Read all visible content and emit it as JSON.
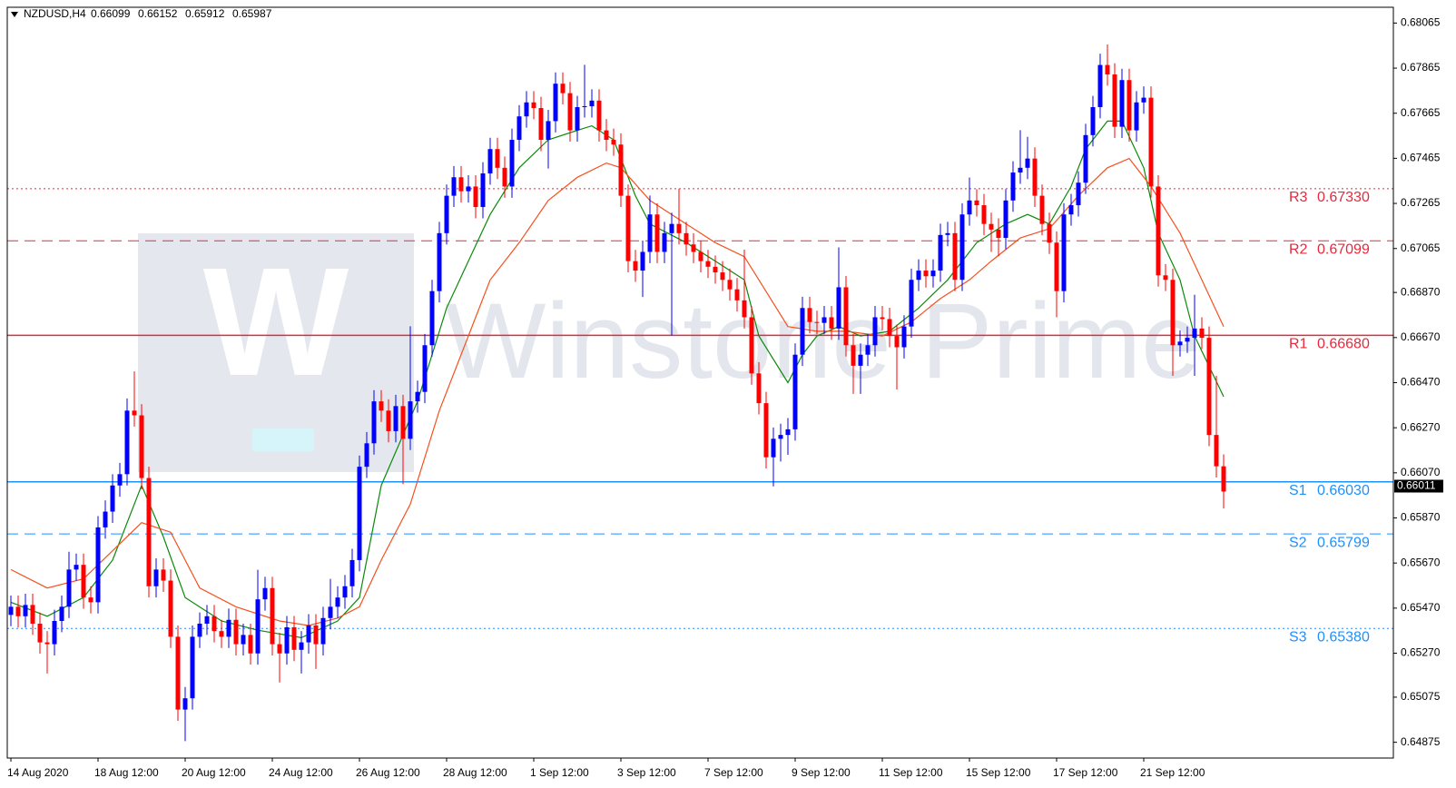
{
  "chart_data": {
    "type": "candlestick",
    "symbol": "NZDUSD,H4",
    "categories": [
      "14 Aug 2020",
      null,
      null,
      null,
      null,
      null,
      null,
      null,
      null,
      null,
      null,
      null,
      "18 Aug 12:00",
      null,
      null,
      null,
      null,
      null,
      null,
      null,
      null,
      null,
      null,
      null,
      "20 Aug 12:00",
      null,
      null,
      null,
      null,
      null,
      null,
      null,
      null,
      null,
      null,
      null,
      "24 Aug 12:00",
      null,
      null,
      null,
      null,
      null,
      null,
      null,
      null,
      null,
      null,
      null,
      "26 Aug 12:00",
      null,
      null,
      null,
      null,
      null,
      null,
      null,
      null,
      null,
      null,
      null,
      "28 Aug 12:00",
      null,
      null,
      null,
      null,
      null,
      null,
      null,
      null,
      null,
      null,
      null,
      "1 Sep 12:00",
      null,
      null,
      null,
      null,
      null,
      null,
      null,
      null,
      null,
      null,
      null,
      "3 Sep 12:00",
      null,
      null,
      null,
      null,
      null,
      null,
      null,
      null,
      null,
      null,
      null,
      "7 Sep 12:00",
      null,
      null,
      null,
      null,
      null,
      null,
      null,
      null,
      null,
      null,
      null,
      "9 Sep 12:00",
      null,
      null,
      null,
      null,
      null,
      null,
      null,
      null,
      null,
      null,
      null,
      "11 Sep 12:00",
      null,
      null,
      null,
      null,
      null,
      null,
      null,
      null,
      null,
      null,
      null,
      "15 Sep 12:00",
      null,
      null,
      null,
      null,
      null,
      null,
      null,
      null,
      null,
      null,
      null,
      "17 Sep 12:00",
      null,
      null,
      null,
      null,
      null,
      null,
      null,
      null,
      null,
      null,
      null,
      "21 Sep 12:00",
      null,
      null,
      null,
      null,
      null,
      null,
      null,
      null,
      null,
      null,
      null
    ],
    "series": {
      "up_color": "#0000ff",
      "down_color": "#ff0000",
      "open": [
        0.6544,
        0.65476,
        0.65434,
        0.65484,
        0.65401,
        0.65318,
        0.6531,
        0.65413,
        0.65476,
        0.65641,
        0.65662,
        0.65517,
        0.65496,
        0.65828,
        0.65898,
        0.66014,
        0.66064,
        0.66346,
        0.66325,
        0.66047,
        0.65567,
        0.65641,
        0.65592,
        0.65343,
        0.6502,
        0.6507,
        0.65343,
        0.65401,
        0.65434,
        0.65368,
        0.65343,
        0.65418,
        0.6531,
        0.65351,
        0.65269,
        0.65509,
        0.65559,
        0.6531,
        0.65269,
        0.65385,
        0.65285,
        0.65318,
        0.65393,
        0.6531,
        0.65426,
        0.65476,
        0.65517,
        0.65567,
        0.65683,
        0.66097,
        0.66201,
        0.66387,
        0.66346,
        0.66255,
        0.66366,
        0.66221,
        0.66387,
        0.66429,
        0.66636,
        0.66876,
        0.67133,
        0.67299,
        0.67381,
        0.67319,
        0.6734,
        0.67249,
        0.67398,
        0.67506,
        0.67423,
        0.6734,
        0.67547,
        0.67651,
        0.67713,
        0.67688,
        0.67547,
        0.6763,
        0.67796,
        0.67754,
        0.67589,
        0.67692,
        0.67696,
        0.67721,
        0.67589,
        0.67547,
        0.67526,
        0.67299,
        0.67009,
        0.66967,
        0.6705,
        0.67216,
        0.6705,
        0.67133,
        0.67174,
        0.67133,
        0.67083,
        0.6705,
        0.67009,
        0.66984,
        0.66959,
        0.66926,
        0.66884,
        0.66835,
        0.6676,
        0.66511,
        0.66379,
        0.66139,
        0.66221,
        0.66238,
        0.66263,
        0.66594,
        0.66801,
        0.66739,
        0.66735,
        0.6676,
        0.6671,
        0.66893,
        0.66636,
        0.66545,
        0.66594,
        0.66636,
        0.6676,
        0.66752,
        0.66677,
        0.66627,
        0.66719,
        0.66926,
        0.66967,
        0.66942,
        0.66967,
        0.67125,
        0.67133,
        0.66926,
        0.67216,
        0.67278,
        0.67257,
        0.67174,
        0.67149,
        0.67112,
        0.67278,
        0.67402,
        0.67423,
        0.67464,
        0.67299,
        0.67174,
        0.67091,
        0.66876,
        0.67216,
        0.67257,
        0.67357,
        0.67568,
        0.67692,
        0.67879,
        0.67837,
        0.67605,
        0.67812,
        0.67589,
        0.67713,
        0.67734,
        0.6734,
        0.66946,
        0.66926,
        0.66636,
        0.66652,
        0.66669,
        0.6671,
        0.66669,
        0.66238,
        0.66099
      ],
      "high": [
        0.65526,
        0.65526,
        0.65534,
        0.65534,
        0.65451,
        0.65368,
        0.65463,
        0.65526,
        0.6572,
        0.65712,
        0.65712,
        0.65567,
        0.65878,
        0.65948,
        0.66064,
        0.66114,
        0.664,
        0.6652,
        0.66375,
        0.66097,
        0.65691,
        0.65691,
        0.65642,
        0.65393,
        0.6512,
        0.65393,
        0.65451,
        0.65484,
        0.65484,
        0.65418,
        0.65468,
        0.65468,
        0.65401,
        0.65401,
        0.6564,
        0.65609,
        0.65609,
        0.6536,
        0.65435,
        0.65435,
        0.65368,
        0.65443,
        0.65443,
        0.65476,
        0.656,
        0.65567,
        0.65617,
        0.65733,
        0.66147,
        0.66251,
        0.66437,
        0.66437,
        0.66396,
        0.66416,
        0.66416,
        0.6672,
        0.66479,
        0.66686,
        0.66926,
        0.67183,
        0.67349,
        0.67431,
        0.67431,
        0.6739,
        0.6739,
        0.67448,
        0.67556,
        0.67556,
        0.67473,
        0.67597,
        0.67701,
        0.67763,
        0.67763,
        0.67738,
        0.6768,
        0.67846,
        0.67846,
        0.67804,
        0.67742,
        0.6788,
        0.67771,
        0.67771,
        0.67639,
        0.67597,
        0.67576,
        0.67349,
        0.67059,
        0.671,
        0.673,
        0.67266,
        0.67183,
        0.67224,
        0.6733,
        0.67183,
        0.67133,
        0.671,
        0.67059,
        0.67034,
        0.67009,
        0.66976,
        0.66934,
        0.6706,
        0.6681,
        0.66561,
        0.66429,
        0.66271,
        0.66288,
        0.66313,
        0.66644,
        0.66851,
        0.66851,
        0.66789,
        0.6681,
        0.6681,
        0.6707,
        0.66943,
        0.66686,
        0.66644,
        0.66686,
        0.6681,
        0.6681,
        0.66802,
        0.66727,
        0.66769,
        0.66976,
        0.67017,
        0.67017,
        0.67017,
        0.67175,
        0.67183,
        0.67183,
        0.67266,
        0.6738,
        0.67328,
        0.67307,
        0.67224,
        0.67199,
        0.67328,
        0.67452,
        0.6759,
        0.6756,
        0.67514,
        0.67349,
        0.67224,
        0.67141,
        0.67266,
        0.67307,
        0.67407,
        0.67618,
        0.67742,
        0.67929,
        0.6797,
        0.67887,
        0.67862,
        0.67862,
        0.67763,
        0.67784,
        0.67784,
        0.6739,
        0.66996,
        0.66976,
        0.66702,
        0.66719,
        0.6686,
        0.6676,
        0.66719,
        0.665,
        0.66152
      ],
      "low": [
        0.6539,
        0.65384,
        0.65384,
        0.65351,
        0.65268,
        0.6518,
        0.6526,
        0.65363,
        0.65426,
        0.65591,
        0.65467,
        0.65446,
        0.65446,
        0.65778,
        0.65848,
        0.65964,
        0.66014,
        0.66275,
        0.65997,
        0.65517,
        0.65517,
        0.65542,
        0.65293,
        0.6497,
        0.6488,
        0.6502,
        0.65293,
        0.65351,
        0.65318,
        0.65293,
        0.65293,
        0.6526,
        0.6526,
        0.65219,
        0.65219,
        0.65459,
        0.6526,
        0.6514,
        0.65219,
        0.65235,
        0.6518,
        0.65268,
        0.652,
        0.6526,
        0.65376,
        0.65426,
        0.65467,
        0.65517,
        0.65633,
        0.66047,
        0.66151,
        0.66296,
        0.66205,
        0.66205,
        0.6602,
        0.66171,
        0.66337,
        0.66379,
        0.66586,
        0.66826,
        0.67083,
        0.67249,
        0.67269,
        0.67269,
        0.67199,
        0.67199,
        0.67348,
        0.67373,
        0.6729,
        0.6729,
        0.67497,
        0.67601,
        0.67638,
        0.67497,
        0.6742,
        0.6758,
        0.67704,
        0.67539,
        0.67539,
        0.67646,
        0.67646,
        0.67539,
        0.67497,
        0.67476,
        0.67249,
        0.66959,
        0.66917,
        0.6685,
        0.67,
        0.67,
        0.67,
        0.6668,
        0.67083,
        0.67033,
        0.67,
        0.66959,
        0.66934,
        0.66909,
        0.66876,
        0.66834,
        0.66785,
        0.6671,
        0.66461,
        0.66329,
        0.66089,
        0.6601,
        0.6612,
        0.6615,
        0.66213,
        0.66544,
        0.66689,
        0.66685,
        0.66685,
        0.6666,
        0.6666,
        0.66586,
        0.6642,
        0.6642,
        0.66544,
        0.66586,
        0.66702,
        0.66627,
        0.6644,
        0.66577,
        0.66669,
        0.66876,
        0.66892,
        0.66892,
        0.66917,
        0.67075,
        0.66876,
        0.66876,
        0.67166,
        0.67207,
        0.67124,
        0.6705,
        0.6703,
        0.67062,
        0.67228,
        0.67352,
        0.67373,
        0.67249,
        0.67124,
        0.67041,
        0.6676,
        0.66826,
        0.67166,
        0.67207,
        0.67307,
        0.67518,
        0.67642,
        0.67787,
        0.67555,
        0.67555,
        0.67539,
        0.67539,
        0.67663,
        0.6729,
        0.66896,
        0.66876,
        0.665,
        0.66586,
        0.66602,
        0.665,
        0.66619,
        0.66188,
        0.66049,
        0.65912
      ],
      "close": [
        0.65476,
        0.65434,
        0.65484,
        0.65401,
        0.65318,
        0.6531,
        0.65413,
        0.65476,
        0.65641,
        0.65662,
        0.65517,
        0.65496,
        0.65828,
        0.65898,
        0.66014,
        0.66064,
        0.66346,
        0.66325,
        0.66047,
        0.65567,
        0.65641,
        0.65592,
        0.65343,
        0.6502,
        0.6507,
        0.65343,
        0.65401,
        0.65434,
        0.65368,
        0.65343,
        0.65418,
        0.6531,
        0.65351,
        0.65269,
        0.65509,
        0.65559,
        0.6531,
        0.65269,
        0.65385,
        0.65285,
        0.65318,
        0.65393,
        0.6531,
        0.65426,
        0.65476,
        0.65517,
        0.65567,
        0.65683,
        0.66097,
        0.66201,
        0.66387,
        0.66346,
        0.66255,
        0.66366,
        0.66221,
        0.66387,
        0.66429,
        0.66636,
        0.66876,
        0.67133,
        0.67299,
        0.67381,
        0.67319,
        0.6734,
        0.67249,
        0.67398,
        0.67506,
        0.67423,
        0.6734,
        0.67547,
        0.67651,
        0.67713,
        0.67688,
        0.67547,
        0.6763,
        0.67796,
        0.67754,
        0.67589,
        0.67692,
        0.67696,
        0.67721,
        0.67589,
        0.67547,
        0.67526,
        0.67299,
        0.67009,
        0.66967,
        0.6705,
        0.67216,
        0.6705,
        0.67133,
        0.67174,
        0.67133,
        0.67083,
        0.6705,
        0.67009,
        0.66984,
        0.66959,
        0.66926,
        0.66884,
        0.66835,
        0.6676,
        0.66511,
        0.66379,
        0.66139,
        0.66221,
        0.66238,
        0.66263,
        0.66594,
        0.66801,
        0.66739,
        0.66735,
        0.6676,
        0.6671,
        0.66893,
        0.66636,
        0.66545,
        0.66594,
        0.66636,
        0.6676,
        0.66752,
        0.66677,
        0.66627,
        0.66719,
        0.66926,
        0.66967,
        0.66942,
        0.66967,
        0.67125,
        0.67133,
        0.66926,
        0.67216,
        0.67278,
        0.67257,
        0.67174,
        0.67149,
        0.67112,
        0.67278,
        0.67402,
        0.67423,
        0.67464,
        0.67299,
        0.67174,
        0.67091,
        0.66876,
        0.67216,
        0.67257,
        0.67357,
        0.67568,
        0.67692,
        0.67879,
        0.67837,
        0.67605,
        0.67812,
        0.67589,
        0.67713,
        0.67734,
        0.6734,
        0.66946,
        0.66926,
        0.66636,
        0.66652,
        0.66669,
        0.6671,
        0.66669,
        0.66238,
        0.66099,
        0.65987
      ]
    },
    "moving_averages": [
      {
        "color": "#0a8a0a",
        "x": [
          0,
          5,
          10,
          14,
          18,
          21,
          24,
          29,
          34,
          40,
          45,
          48,
          51,
          56,
          60,
          63,
          66,
          70,
          74,
          78,
          80,
          83,
          86,
          88,
          93,
          97,
          101,
          103,
          107,
          109,
          111,
          114,
          117,
          121,
          125,
          129,
          133,
          137,
          140,
          143,
          146,
          148,
          151,
          153,
          156,
          158,
          161,
          163,
          167
        ],
        "values": [
          0.65496,
          0.65434,
          0.65517,
          0.65683,
          0.66014,
          0.65786,
          0.65517,
          0.65413,
          0.65372,
          0.65339,
          0.65413,
          0.65517,
          0.66014,
          0.66387,
          0.66801,
          0.67009,
          0.67216,
          0.67423,
          0.67547,
          0.67589,
          0.67609,
          0.67547,
          0.67299,
          0.67174,
          0.67091,
          0.67009,
          0.66926,
          0.66677,
          0.6647,
          0.66594,
          0.66677,
          0.66719,
          0.66677,
          0.66698,
          0.66801,
          0.66926,
          0.67091,
          0.67174,
          0.67216,
          0.67174,
          0.6734,
          0.67506,
          0.6763,
          0.6763,
          0.67423,
          0.67133,
          0.66926,
          0.66677,
          0.66408
        ]
      },
      {
        "color": "#f4511e",
        "x": [
          0,
          5,
          10,
          18,
          22,
          26,
          31,
          37,
          41,
          45,
          48,
          51,
          55,
          59,
          63,
          66,
          70,
          74,
          78,
          82,
          84,
          88,
          93,
          97,
          101,
          103,
          107,
          111,
          115,
          120,
          124,
          128,
          132,
          135,
          139,
          143,
          147,
          151,
          154,
          157,
          161,
          164,
          167
        ],
        "values": [
          0.65641,
          0.65559,
          0.656,
          0.65849,
          0.65807,
          0.65559,
          0.65476,
          0.65413,
          0.65393,
          0.65426,
          0.65476,
          0.65683,
          0.65931,
          0.66346,
          0.66677,
          0.66926,
          0.67091,
          0.67278,
          0.67381,
          0.67444,
          0.67423,
          0.67278,
          0.67174,
          0.67091,
          0.67029,
          0.66926,
          0.66719,
          0.66698,
          0.66698,
          0.66677,
          0.66739,
          0.66843,
          0.66926,
          0.67009,
          0.67112,
          0.67153,
          0.67299,
          0.67423,
          0.67464,
          0.6734,
          0.67133,
          0.66926,
          0.66719
        ]
      }
    ],
    "levels": [
      {
        "name": "R3",
        "value": 0.6733,
        "value_label": "0.67330",
        "color": "#e8283c",
        "style": "dotted"
      },
      {
        "name": "R2",
        "value": 0.67099,
        "color": "#e8283c",
        "style": "dashed"
      },
      {
        "name": "R1",
        "value": 0.6668,
        "value_label": "0.66680",
        "color": "#e8283c",
        "style": "solid"
      },
      {
        "name": "S1",
        "value": 0.6603,
        "value_label": "0.66030",
        "color": "#1e90ff",
        "style": "solid"
      },
      {
        "name": "S2",
        "value": 0.65799,
        "color": "#1e90ff",
        "style": "dashed"
      },
      {
        "name": "S3",
        "value": 0.6538,
        "value_label": "0.65380",
        "color": "#1e90ff",
        "style": "dotted"
      }
    ],
    "current_price": 0.66011,
    "ylim": [
      0.64805,
      0.68135
    ],
    "yticks": [
      0.68065,
      0.67865,
      0.67665,
      0.67465,
      0.67265,
      0.67065,
      {
        "value": 0.6687,
        "label": "0.66870"
      },
      {
        "value": 0.6667,
        "label": "0.66670"
      },
      {
        "value": 0.6647,
        "label": "0.66470"
      },
      {
        "value": 0.6627,
        "label": "0.66270"
      },
      {
        "value": 0.6607,
        "label": "0.66070"
      },
      {
        "value": 0.6587,
        "label": "0.65870"
      },
      {
        "value": 0.6567,
        "label": "0.65670"
      },
      {
        "value": 0.6547,
        "label": "0.65470"
      },
      {
        "value": 0.6527,
        "label": "0.65270"
      },
      0.65075,
      0.64875
    ],
    "watermark": "Winstone Prime",
    "watermark_logo": "W"
  }
}
